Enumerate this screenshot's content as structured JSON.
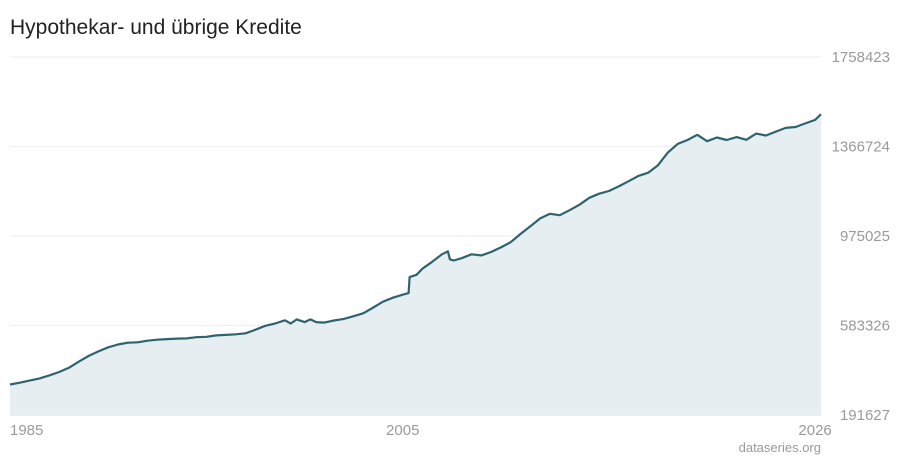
{
  "title": "Hypothekar- und übrige Kredite",
  "source": "dataseries.org",
  "colors": {
    "line": "#2e6370",
    "area": "#e7eef1",
    "grid": "#eeeeee",
    "text": "#9a9a9a"
  },
  "chart_data": {
    "type": "area",
    "title": "Hypothekar- und übrige Kredite",
    "xlim": [
      1985,
      2026.3
    ],
    "ylim": [
      191627,
      1758423
    ],
    "yticks": [
      "1758423",
      "1366724",
      "975025",
      "583326",
      "191627"
    ],
    "ytick_values": [
      1758423,
      1366724,
      975025,
      583326,
      191627
    ],
    "xticks": [
      "1985",
      "2005",
      "2026"
    ],
    "xtick_values": [
      1985,
      2005,
      2026
    ],
    "grid": true,
    "series": [
      {
        "x": [
          1985.0,
          1985.5,
          1986.0,
          1986.5,
          1987.0,
          1987.5,
          1988.0,
          1988.5,
          1989.0,
          1989.5,
          1990.0,
          1990.5,
          1991.0,
          1991.5,
          1992.0,
          1992.5,
          1993.0,
          1993.5,
          1994.0,
          1994.5,
          1995.0,
          1995.5,
          1996.0,
          1996.5,
          1997.0,
          1997.5,
          1998.0,
          1998.5,
          1999.0,
          1999.3,
          1999.6,
          2000.0,
          2000.3,
          2000.6,
          2001.0,
          2001.5,
          2002.0,
          2002.5,
          2003.0,
          2003.5,
          2004.0,
          2004.5,
          2005.0,
          2005.3,
          2005.35,
          2005.7,
          2006.0,
          2006.5,
          2007.0,
          2007.3,
          2007.4,
          2007.6,
          2008.0,
          2008.5,
          2009.0,
          2009.5,
          2010.0,
          2010.5,
          2011.0,
          2011.5,
          2012.0,
          2012.5,
          2013.0,
          2013.5,
          2014.0,
          2014.5,
          2015.0,
          2015.5,
          2016.0,
          2016.5,
          2017.0,
          2017.5,
          2018.0,
          2018.5,
          2019.0,
          2019.5,
          2020.0,
          2020.5,
          2021.0,
          2021.5,
          2022.0,
          2022.5,
          2023.0,
          2023.5,
          2024.0,
          2024.5,
          2025.0,
          2025.5,
          2026.0,
          2026.3
        ],
        "y": [
          325000,
          333000,
          342000,
          352000,
          365000,
          380000,
          398000,
          425000,
          450000,
          470000,
          488000,
          500000,
          508000,
          510000,
          517000,
          521000,
          524000,
          526000,
          527000,
          532000,
          534000,
          540000,
          542000,
          545000,
          549000,
          565000,
          582000,
          592000,
          606000,
          592000,
          610000,
          598000,
          610000,
          598000,
          596000,
          605000,
          612000,
          624000,
          637000,
          662000,
          688000,
          705000,
          718000,
          725000,
          795000,
          805000,
          832000,
          862000,
          895000,
          908000,
          873000,
          868000,
          878000,
          895000,
          890000,
          905000,
          925000,
          948000,
          984000,
          1018000,
          1052000,
          1072000,
          1066000,
          1088000,
          1112000,
          1142000,
          1160000,
          1172000,
          1192000,
          1215000,
          1238000,
          1252000,
          1285000,
          1340000,
          1378000,
          1395000,
          1418000,
          1390000,
          1406000,
          1395000,
          1408000,
          1396000,
          1423000,
          1415000,
          1432000,
          1448000,
          1452000,
          1468000,
          1483000,
          1508000
        ]
      }
    ]
  }
}
